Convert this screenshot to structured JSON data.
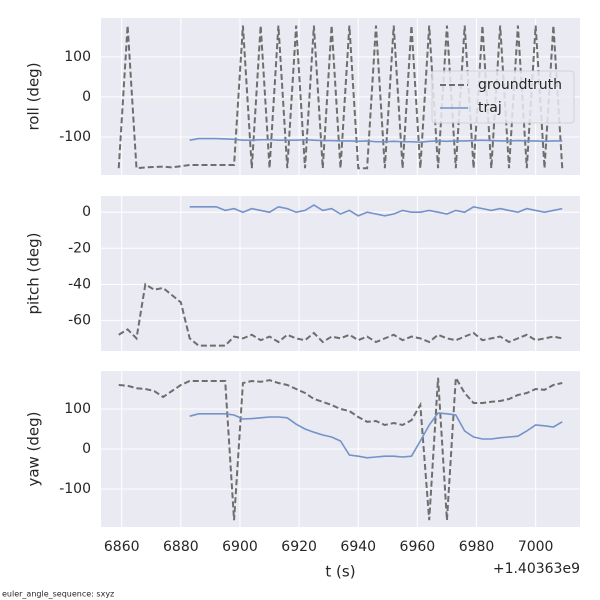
{
  "chart_data": [
    {
      "type": "line",
      "ylabel": "roll (deg)",
      "legend": "upper right",
      "grid": true,
      "x": [
        6859,
        6862,
        6865,
        6868,
        6871,
        6874,
        6877,
        6880,
        6883,
        6886,
        6889,
        6892,
        6895,
        6898,
        6901,
        6904,
        6907,
        6910,
        6913,
        6916,
        6919,
        6922,
        6925,
        6928,
        6931,
        6934,
        6937,
        6940,
        6943,
        6946,
        6949,
        6952,
        6955,
        6958,
        6961,
        6964,
        6967,
        6970,
        6973,
        6976,
        6979,
        6982,
        6985,
        6988,
        6991,
        6994,
        6997,
        7000,
        7003,
        7006,
        7009
      ],
      "xlim": [
        6853,
        7015
      ],
      "xticks": [
        6860,
        6880,
        6900,
        6920,
        6940,
        6960,
        6980,
        7000
      ],
      "ylim": [
        -195,
        197
      ],
      "yticks": [
        -100,
        0,
        100
      ],
      "series": [
        {
          "name": "groundtruth",
          "color": "#6e6e6e",
          "dashed": true,
          "values": [
            -178,
            178,
            -178,
            -176,
            -175,
            -174,
            -176,
            -173,
            -170,
            -170,
            -170,
            -170,
            -170,
            -170,
            178,
            -178,
            178,
            -178,
            178,
            -178,
            178,
            -178,
            178,
            -178,
            178,
            -178,
            178,
            -178,
            -178,
            178,
            -178,
            178,
            -178,
            178,
            -178,
            178,
            -178,
            178,
            -178,
            178,
            -178,
            178,
            -178,
            178,
            -178,
            178,
            -178,
            178,
            -178,
            178,
            -178
          ]
        },
        {
          "name": "traj",
          "color": "#7393c9",
          "dashed": false,
          "values": [
            null,
            null,
            null,
            null,
            null,
            null,
            null,
            null,
            -108,
            -104,
            -104,
            -104,
            -105,
            -106,
            -108,
            -108,
            -107,
            -107,
            -108,
            -108,
            -108,
            -107,
            -108,
            -109,
            -109,
            -110,
            -110,
            -111,
            -110,
            -112,
            -112,
            -111,
            -112,
            -112,
            -113,
            -111,
            -110,
            -111,
            -110,
            -110,
            -109,
            -108,
            -109,
            -110,
            -110,
            -109,
            -110,
            -110,
            -111,
            -110,
            -110
          ]
        }
      ]
    },
    {
      "type": "line",
      "ylabel": "pitch (deg)",
      "grid": true,
      "x": [
        6859,
        6862,
        6865,
        6868,
        6871,
        6874,
        6877,
        6880,
        6883,
        6886,
        6889,
        6892,
        6895,
        6898,
        6901,
        6904,
        6907,
        6910,
        6913,
        6916,
        6919,
        6922,
        6925,
        6928,
        6931,
        6934,
        6937,
        6940,
        6943,
        6946,
        6949,
        6952,
        6955,
        6958,
        6961,
        6964,
        6967,
        6970,
        6973,
        6976,
        6979,
        6982,
        6985,
        6988,
        6991,
        6994,
        6997,
        7000,
        7003,
        7006,
        7009
      ],
      "xlim": [
        6853,
        7015
      ],
      "xticks": [
        6860,
        6880,
        6900,
        6920,
        6940,
        6960,
        6980,
        7000
      ],
      "ylim": [
        -77,
        9
      ],
      "yticks": [
        -60,
        -40,
        -20,
        0
      ],
      "series": [
        {
          "name": "groundtruth",
          "color": "#6e6e6e",
          "dashed": true,
          "values": [
            -68,
            -65,
            -70,
            -40,
            -43,
            -42,
            -46,
            -50,
            -70,
            -74,
            -74,
            -74,
            -74,
            -69,
            -70,
            -68,
            -71,
            -69,
            -72,
            -68,
            -70,
            -71,
            -67,
            -72,
            -69,
            -70,
            -68,
            -71,
            -69,
            -72,
            -70,
            -68,
            -71,
            -69,
            -70,
            -72,
            -68,
            -70,
            -71,
            -69,
            -67,
            -71,
            -70,
            -69,
            -72,
            -70,
            -68,
            -71,
            -70,
            -69,
            -70
          ]
        },
        {
          "name": "traj",
          "color": "#7393c9",
          "dashed": false,
          "values": [
            null,
            null,
            null,
            null,
            null,
            null,
            null,
            null,
            3,
            3,
            3,
            3,
            1,
            2,
            0,
            2,
            1,
            0,
            3,
            2,
            0,
            1,
            4,
            1,
            2,
            -1,
            1,
            -2,
            0,
            -1,
            -2,
            -1,
            1,
            0,
            0,
            1,
            0,
            -1,
            1,
            0,
            3,
            2,
            1,
            2,
            1,
            0,
            2,
            1,
            0,
            1,
            2
          ]
        }
      ]
    },
    {
      "type": "line",
      "ylabel": "yaw (deg)",
      "grid": true,
      "xlabel": "t (s)",
      "x_offset": "+1.40363e9",
      "x": [
        6859,
        6862,
        6865,
        6868,
        6871,
        6874,
        6877,
        6880,
        6883,
        6886,
        6889,
        6892,
        6895,
        6898,
        6901,
        6904,
        6907,
        6910,
        6913,
        6916,
        6919,
        6922,
        6925,
        6928,
        6931,
        6934,
        6937,
        6940,
        6943,
        6946,
        6949,
        6952,
        6955,
        6958,
        6961,
        6964,
        6967,
        6970,
        6973,
        6976,
        6979,
        6982,
        6985,
        6988,
        6991,
        6994,
        6997,
        7000,
        7003,
        7006,
        7009
      ],
      "xlim": [
        6853,
        7015
      ],
      "xticks": [
        6860,
        6880,
        6900,
        6920,
        6940,
        6960,
        6980,
        7000
      ],
      "ylim": [
        -195,
        195
      ],
      "yticks": [
        -100,
        0,
        100
      ],
      "series": [
        {
          "name": "groundtruth",
          "color": "#6e6e6e",
          "dashed": true,
          "values": [
            160,
            158,
            152,
            150,
            145,
            130,
            145,
            160,
            170,
            170,
            170,
            170,
            170,
            -178,
            165,
            170,
            168,
            172,
            165,
            160,
            150,
            140,
            125,
            118,
            110,
            100,
            95,
            80,
            68,
            70,
            60,
            65,
            60,
            72,
            110,
            -178,
            178,
            -178,
            178,
            140,
            115,
            115,
            118,
            120,
            125,
            135,
            140,
            150,
            148,
            160,
            165
          ]
        },
        {
          "name": "traj",
          "color": "#7393c9",
          "dashed": false,
          "values": [
            null,
            null,
            null,
            null,
            null,
            null,
            null,
            null,
            82,
            88,
            88,
            88,
            88,
            85,
            75,
            76,
            78,
            80,
            80,
            78,
            62,
            50,
            42,
            35,
            30,
            20,
            -15,
            -18,
            -22,
            -20,
            -18,
            -18,
            -20,
            -18,
            20,
            60,
            90,
            88,
            85,
            45,
            30,
            25,
            25,
            28,
            30,
            32,
            45,
            60,
            58,
            55,
            68
          ]
        }
      ]
    }
  ],
  "footer": "euler_angle_sequence: sxyz"
}
